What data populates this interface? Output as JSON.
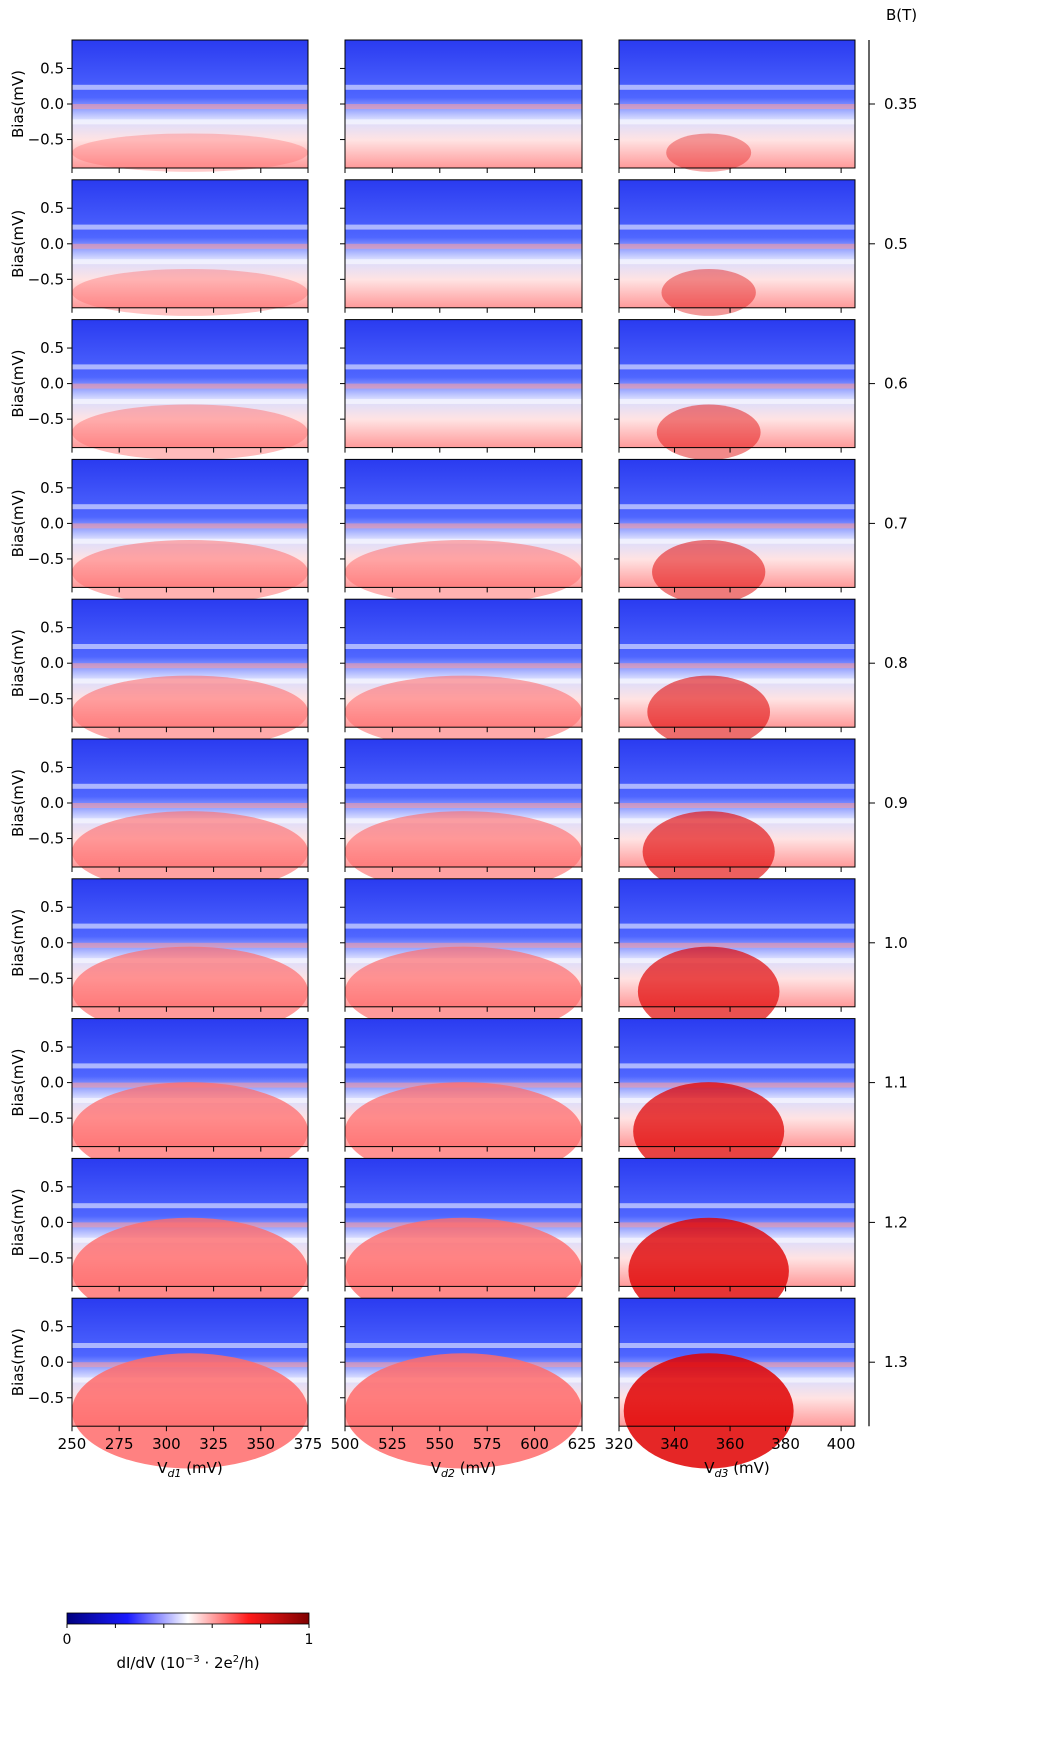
{
  "chart_data": {
    "type": "heatmap",
    "rows": [
      "0.35",
      "0.5",
      "0.6",
      "0.7",
      "0.8",
      "0.9",
      "1.0",
      "1.1",
      "1.2",
      "1.3"
    ],
    "row_axis_label": "B(T)",
    "columns": [
      {
        "xlabel_main": "V",
        "xlabel_sub": "d1",
        "xlabel_unit": " (mV)",
        "xlim": [
          250,
          375
        ],
        "xticks": [
          "250",
          "275",
          "300",
          "325",
          "350",
          "375"
        ]
      },
      {
        "xlabel_main": "V",
        "xlabel_sub": "d2",
        "xlabel_unit": " (mV)",
        "xlim": [
          500,
          625
        ],
        "xticks": [
          "500",
          "525",
          "550",
          "575",
          "600",
          "625"
        ]
      },
      {
        "xlabel_main": "V",
        "xlabel_sub": "d3",
        "xlabel_unit": " (mV)",
        "xlim": [
          320,
          405
        ],
        "xticks": [
          "320",
          "340",
          "360",
          "380",
          "400"
        ]
      }
    ],
    "ylabel": "Bias(mV)",
    "ylim": [
      -0.9,
      0.9
    ],
    "yticks": [
      "0.5",
      "0.0",
      "−0.5"
    ],
    "colorbar": {
      "label_pre": "dI/dV (10",
      "label_exp": "−3",
      "label_mid": " · 2e",
      "label_exp2": "2",
      "label_post": "/h)",
      "min": "0",
      "max": "1",
      "colors": [
        "#00007f",
        "#1a1aff",
        "#ffffff",
        "#ff1a1a",
        "#7f0000"
      ]
    }
  }
}
